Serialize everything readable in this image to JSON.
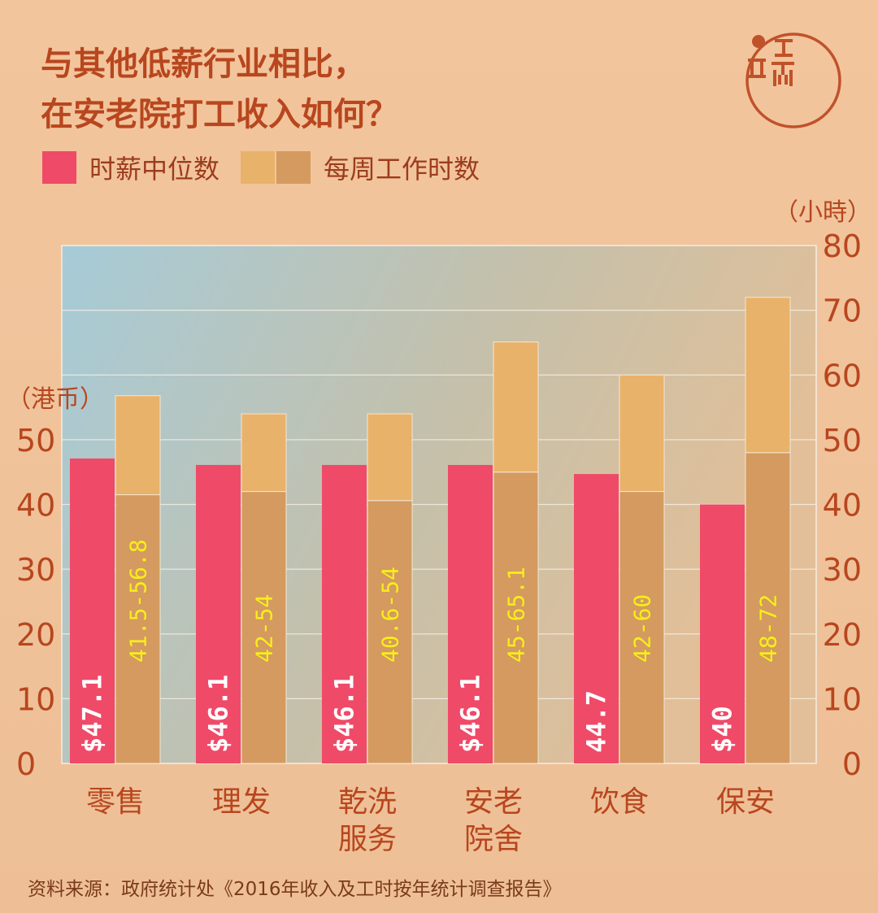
{
  "title_lines": [
    "与其他低薪行业相比，",
    "在安老院打工收入如何？"
  ],
  "legend": {
    "wage": "时薪中位数",
    "hours": "每周工作时数"
  },
  "units": {
    "left": "（港币）",
    "right": "（小時）"
  },
  "source": "资料来源：政府统计处《2016年收入及工时按年统计调查报告》",
  "colors": {
    "wage": "#ef4a68",
    "hours_min": "#d49a5f",
    "hours_max": "#e9b26a",
    "axis_text": "#b8461e",
    "wage_label": "#ffffff",
    "hours_label": "#f7ee1a"
  },
  "chart_data": {
    "type": "bar",
    "categories": [
      [
        "零售"
      ],
      [
        "理发"
      ],
      [
        "乾洗",
        "服务"
      ],
      [
        "安老",
        "院舍"
      ],
      [
        "饮食"
      ],
      [
        "保安"
      ]
    ],
    "series": [
      {
        "name": "时薪中位数",
        "axis": "left",
        "values": [
          47.1,
          46.1,
          46.1,
          46.1,
          44.7,
          40
        ],
        "labels": [
          "$47.1",
          "$46.1",
          "$46.1",
          "$46.1",
          "44.7",
          "$40"
        ]
      },
      {
        "name": "每周工作时数",
        "axis": "right",
        "type": "range",
        "min": [
          41.5,
          42,
          40.6,
          45,
          42,
          48
        ],
        "max": [
          56.8,
          54,
          54,
          65.1,
          60,
          72
        ],
        "labels": [
          "41.5-56.8",
          "42-54",
          "40.6-54",
          "45-65.1",
          "42-60",
          "48-72"
        ]
      }
    ],
    "left_axis": {
      "ticks": [
        0,
        10,
        20,
        30,
        40,
        50
      ],
      "ylim": [
        0,
        80
      ]
    },
    "right_axis": {
      "ticks": [
        0,
        10,
        20,
        30,
        40,
        50,
        60,
        70,
        80
      ],
      "ylim": [
        0,
        80
      ]
    },
    "grid": true
  }
}
